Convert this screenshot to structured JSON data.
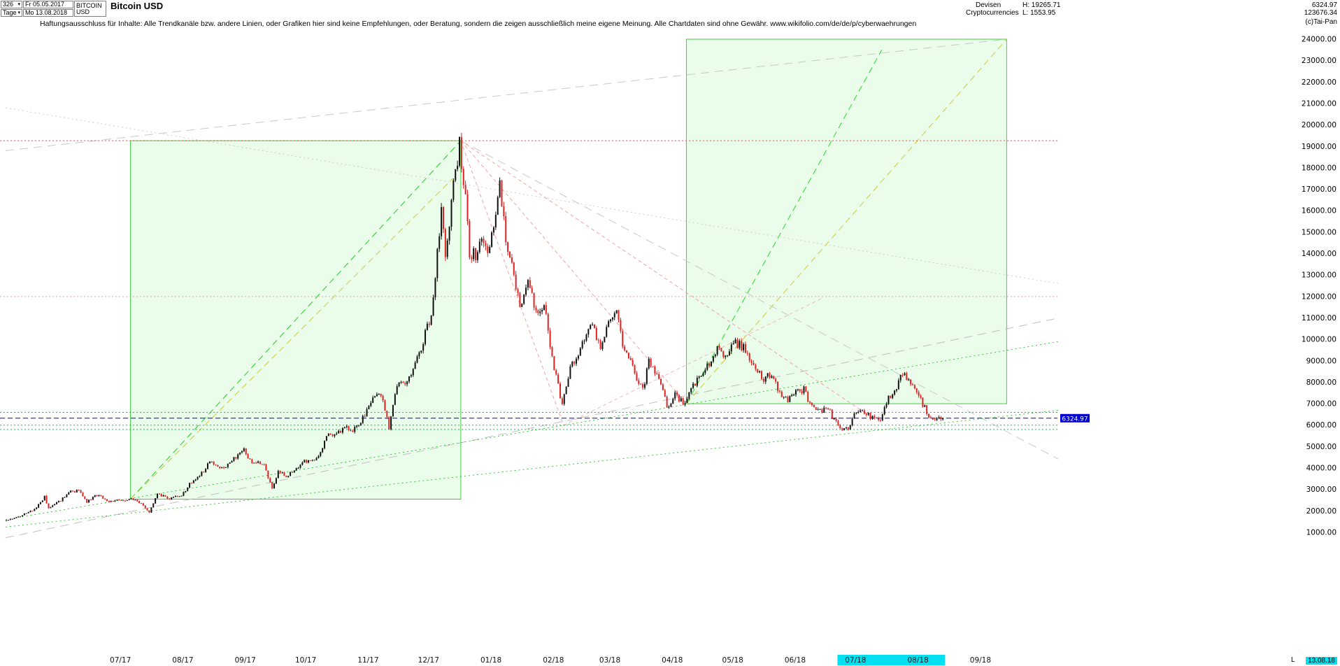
{
  "header": {
    "bars_count": "326",
    "timeframe": "Tage",
    "start_date": "Fr 05.05.2017",
    "end_date": "Mo 13.08.2018",
    "symbol_line1": "BITCOIN",
    "symbol_line2": "USD",
    "title": "Bitcoin USD",
    "category_line1": "Devisen",
    "category_line2": "Cryptocurrencies",
    "high_label": "H: 19265.71",
    "low_label": "L: 1553.95",
    "last_price": "6324.97",
    "volume": "123676.34",
    "copyright": "(c)Tai-Pan"
  },
  "disclaimer": "Haftungsausschluss für Inhalte: Alle Trendkanäle bzw. andere Linien, oder Grafiken hier sind keine Empfehlungen, oder Beratung, sondern die zeigen ausschließlich meine eigene Meinung. Alle Chartdaten sind ohne Gewähr.  www.wikifolio.com/de/de/p/cyberwaehrungen",
  "footer": {
    "l_label": "L",
    "last_date_label": "13.08.18"
  },
  "chart_data": {
    "type": "candlestick",
    "title": "Bitcoin USD",
    "period_high": 19265.71,
    "period_low": 1553.95,
    "current_price": 6324.97,
    "y_axis": {
      "max": 24000,
      "min": 1000,
      "step": 1000
    },
    "x_axis": {
      "start_date": "2017-05-05",
      "end_date": "2018-08-13",
      "labels": [
        [
          "07/17",
          "2017-07-01"
        ],
        [
          "08/17",
          "2017-08-01"
        ],
        [
          "09/17",
          "2017-09-01"
        ],
        [
          "10/17",
          "2017-10-01"
        ],
        [
          "11/17",
          "2017-11-01"
        ],
        [
          "12/17",
          "2017-12-01"
        ],
        [
          "01/18",
          "2018-01-01"
        ],
        [
          "02/18",
          "2018-02-01"
        ],
        [
          "03/18",
          "2018-03-01"
        ],
        [
          "04/18",
          "2018-04-01"
        ],
        [
          "05/18",
          "2018-05-01"
        ],
        [
          "06/18",
          "2018-06-01"
        ],
        [
          "07/18",
          "2018-07-01"
        ],
        [
          "08/18",
          "2018-08-01"
        ],
        [
          "09/18",
          "2018-09-01"
        ]
      ]
    },
    "anchors": [
      [
        "2017-05-05",
        1555
      ],
      [
        "2017-05-12",
        1720
      ],
      [
        "2017-05-20",
        2050
      ],
      [
        "2017-05-25",
        2650
      ],
      [
        "2017-05-27",
        2150
      ],
      [
        "2017-06-01",
        2420
      ],
      [
        "2017-06-06",
        2870
      ],
      [
        "2017-06-11",
        2960
      ],
      [
        "2017-06-15",
        2420
      ],
      [
        "2017-06-20",
        2750
      ],
      [
        "2017-06-26",
        2470
      ],
      [
        "2017-07-01",
        2480
      ],
      [
        "2017-07-08",
        2560
      ],
      [
        "2017-07-12",
        2340
      ],
      [
        "2017-07-16",
        1940
      ],
      [
        "2017-07-20",
        2840
      ],
      [
        "2017-07-25",
        2560
      ],
      [
        "2017-08-01",
        2740
      ],
      [
        "2017-08-05",
        3240
      ],
      [
        "2017-08-08",
        3430
      ],
      [
        "2017-08-12",
        3860
      ],
      [
        "2017-08-15",
        4280
      ],
      [
        "2017-08-18",
        4140
      ],
      [
        "2017-08-22",
        3960
      ],
      [
        "2017-08-26",
        4360
      ],
      [
        "2017-09-01",
        4900
      ],
      [
        "2017-09-04",
        4320
      ],
      [
        "2017-09-08",
        4240
      ],
      [
        "2017-09-11",
        4150
      ],
      [
        "2017-09-15",
        3050
      ],
      [
        "2017-09-18",
        3880
      ],
      [
        "2017-09-22",
        3650
      ],
      [
        "2017-09-26",
        3910
      ],
      [
        "2017-10-01",
        4340
      ],
      [
        "2017-10-05",
        4320
      ],
      [
        "2017-10-09",
        4770
      ],
      [
        "2017-10-13",
        5640
      ],
      [
        "2017-10-17",
        5560
      ],
      [
        "2017-10-21",
        5990
      ],
      [
        "2017-10-25",
        5740
      ],
      [
        "2017-10-29",
        6150
      ],
      [
        "2017-11-01",
        6740
      ],
      [
        "2017-11-05",
        7390
      ],
      [
        "2017-11-08",
        7440
      ],
      [
        "2017-11-12",
        5880
      ],
      [
        "2017-11-16",
        7870
      ],
      [
        "2017-11-20",
        8040
      ],
      [
        "2017-11-25",
        8760
      ],
      [
        "2017-11-29",
        9920
      ],
      [
        "2017-12-03",
        11250
      ],
      [
        "2017-12-06",
        13990
      ],
      [
        "2017-12-08",
        16010
      ],
      [
        "2017-12-10",
        13590
      ],
      [
        "2017-12-13",
        16480
      ],
      [
        "2017-12-17",
        19100
      ],
      [
        "2017-12-20",
        16730
      ],
      [
        "2017-12-22",
        13830
      ],
      [
        "2017-12-25",
        13990
      ],
      [
        "2017-12-28",
        14400
      ],
      [
        "2017-12-31",
        13880
      ],
      [
        "2018-01-03",
        15180
      ],
      [
        "2018-01-06",
        17090
      ],
      [
        "2018-01-09",
        14590
      ],
      [
        "2018-01-12",
        13820
      ],
      [
        "2018-01-16",
        11300
      ],
      [
        "2018-01-20",
        12790
      ],
      [
        "2018-01-24",
        11210
      ],
      [
        "2018-01-28",
        11760
      ],
      [
        "2018-02-01",
        9080
      ],
      [
        "2018-02-06",
        6950
      ],
      [
        "2018-02-10",
        8620
      ],
      [
        "2018-02-14",
        9400
      ],
      [
        "2018-02-18",
        10380
      ],
      [
        "2018-02-21",
        10650
      ],
      [
        "2018-02-25",
        9590
      ],
      [
        "2018-03-01",
        10900
      ],
      [
        "2018-03-05",
        11500
      ],
      [
        "2018-03-09",
        9280
      ],
      [
        "2018-03-12",
        9110
      ],
      [
        "2018-03-15",
        8270
      ],
      [
        "2018-03-18",
        7600
      ],
      [
        "2018-03-21",
        8930
      ],
      [
        "2018-03-25",
        8450
      ],
      [
        "2018-03-30",
        6840
      ],
      [
        "2018-04-03",
        7410
      ],
      [
        "2018-04-08",
        6990
      ],
      [
        "2018-04-12",
        7890
      ],
      [
        "2018-04-16",
        8340
      ],
      [
        "2018-04-20",
        8860
      ],
      [
        "2018-04-24",
        9650
      ],
      [
        "2018-04-28",
        9290
      ],
      [
        "2018-05-02",
        9750
      ],
      [
        "2018-05-05",
        9840
      ],
      [
        "2018-05-09",
        9310
      ],
      [
        "2018-05-13",
        8690
      ],
      [
        "2018-05-17",
        8090
      ],
      [
        "2018-05-21",
        8420
      ],
      [
        "2018-05-25",
        7470
      ],
      [
        "2018-05-29",
        7130
      ],
      [
        "2018-06-02",
        7640
      ],
      [
        "2018-06-06",
        7650
      ],
      [
        "2018-06-10",
        6790
      ],
      [
        "2018-06-14",
        6640
      ],
      [
        "2018-06-18",
        6740
      ],
      [
        "2018-06-22",
        6080
      ],
      [
        "2018-06-24",
        5840
      ],
      [
        "2018-06-28",
        5900
      ],
      [
        "2018-07-02",
        6620
      ],
      [
        "2018-07-06",
        6590
      ],
      [
        "2018-07-10",
        6390
      ],
      [
        "2018-07-14",
        6250
      ],
      [
        "2018-07-18",
        7380
      ],
      [
        "2018-07-22",
        7520
      ],
      [
        "2018-07-24",
        8380
      ],
      [
        "2018-07-28",
        8180
      ],
      [
        "2018-08-01",
        7600
      ],
      [
        "2018-08-04",
        7010
      ],
      [
        "2018-08-08",
        6290
      ],
      [
        "2018-08-11",
        6250
      ],
      [
        "2018-08-13",
        6324.97
      ]
    ],
    "levels": [
      {
        "price": 19265,
        "color": "#ff4040",
        "dash": "2,3"
      },
      {
        "price": 12000,
        "color": "#ff9999",
        "dash": "2,3"
      },
      {
        "price": 6324.97,
        "color": "#0000ee",
        "dash": "7,4",
        "tag": true
      },
      {
        "price": 6600,
        "color": "#00bb44",
        "dash": "2,3"
      },
      {
        "price": 6000,
        "color": "#00cc44",
        "dash": "2,3"
      },
      {
        "price": 5800,
        "color": "#00cc44",
        "dash": "2,3"
      }
    ],
    "boxes": [
      {
        "from": [
          "2017-07-06",
          2550
        ],
        "to": [
          "2017-12-17",
          19265
        ],
        "stroke": "#44cc44",
        "fill": "rgba(160,240,160,0.22)"
      },
      {
        "from": [
          "2018-04-08",
          7000
        ],
        "to": [
          "2018-09-14",
          24000
        ],
        "stroke": "#44cc44",
        "fill": "rgba(160,240,160,0.22)"
      }
    ],
    "trendlines": [
      {
        "from": [
          "2017-07-06",
          2550
        ],
        "to": [
          "2017-12-17",
          19265
        ],
        "color": "#22cc22",
        "dash": "9,6"
      },
      {
        "from": [
          "2017-07-06",
          2550
        ],
        "to": [
          "2017-12-13",
          17500
        ],
        "color": "#cccc33",
        "dash": "9,6"
      },
      {
        "from": [
          "2018-04-08",
          7000
        ],
        "to": [
          "2018-07-14",
          23500
        ],
        "color": "#22dd22",
        "dash": "9,6"
      },
      {
        "from": [
          "2018-04-08",
          7000
        ],
        "to": [
          "2018-09-14",
          24000
        ],
        "color": "#cccc33",
        "dash": "9,6"
      },
      {
        "from": [
          "2017-12-17",
          19265
        ],
        "to": [
          "2018-04-08",
          7000
        ],
        "color": "#f2a2a2",
        "dash": "5,4"
      },
      {
        "from": [
          "2017-12-17",
          19265
        ],
        "to": [
          "2018-02-06",
          6000
        ],
        "color": "#f2a2a2",
        "dash": "5,4"
      },
      {
        "from": [
          "2017-12-17",
          19265
        ],
        "to": [
          "2018-07-10",
          6300
        ],
        "color": "#f2a2a2",
        "dash": "5,4"
      },
      {
        "from": [
          "2018-02-06",
          6000
        ],
        "to": [
          "2018-06-14",
          11900
        ],
        "color": "#f4b8b8",
        "dash": "5,4"
      },
      {
        "from": [
          "2017-05-05",
          750
        ],
        "to": [
          "2018-10-10",
          11000
        ],
        "color": "#c0c0c0",
        "dash": "12,8"
      },
      {
        "from": [
          "2017-05-05",
          18800
        ],
        "to": [
          "2018-09-14",
          24000
        ],
        "color": "#c8c8c8",
        "dash": "12,8"
      },
      {
        "from": [
          "2017-12-17",
          19265
        ],
        "to": [
          "2018-10-10",
          4400
        ],
        "color": "#c8c8c8",
        "dash": "12,8"
      },
      {
        "from": [
          "2017-05-05",
          20800
        ],
        "to": [
          "2018-10-10",
          12600
        ],
        "color": "#cccccc",
        "dash": "2,4"
      },
      {
        "from": [
          "2017-05-05",
          1600
        ],
        "to": [
          "2018-10-10",
          9900
        ],
        "color": "#33cc33",
        "dash": "2,4"
      },
      {
        "from": [
          "2017-05-05",
          1250
        ],
        "to": [
          "2018-10-10",
          6700
        ],
        "color": "#33cc33",
        "dash": "2,4"
      }
    ],
    "highlight_range": {
      "from": "2018-06-22",
      "to": "2018-08-13",
      "color": "#00e0f0"
    },
    "colors": {
      "up_candle": "#111111",
      "down_candle": "#dd2222",
      "price_tag_bg": "#0000cc"
    }
  }
}
